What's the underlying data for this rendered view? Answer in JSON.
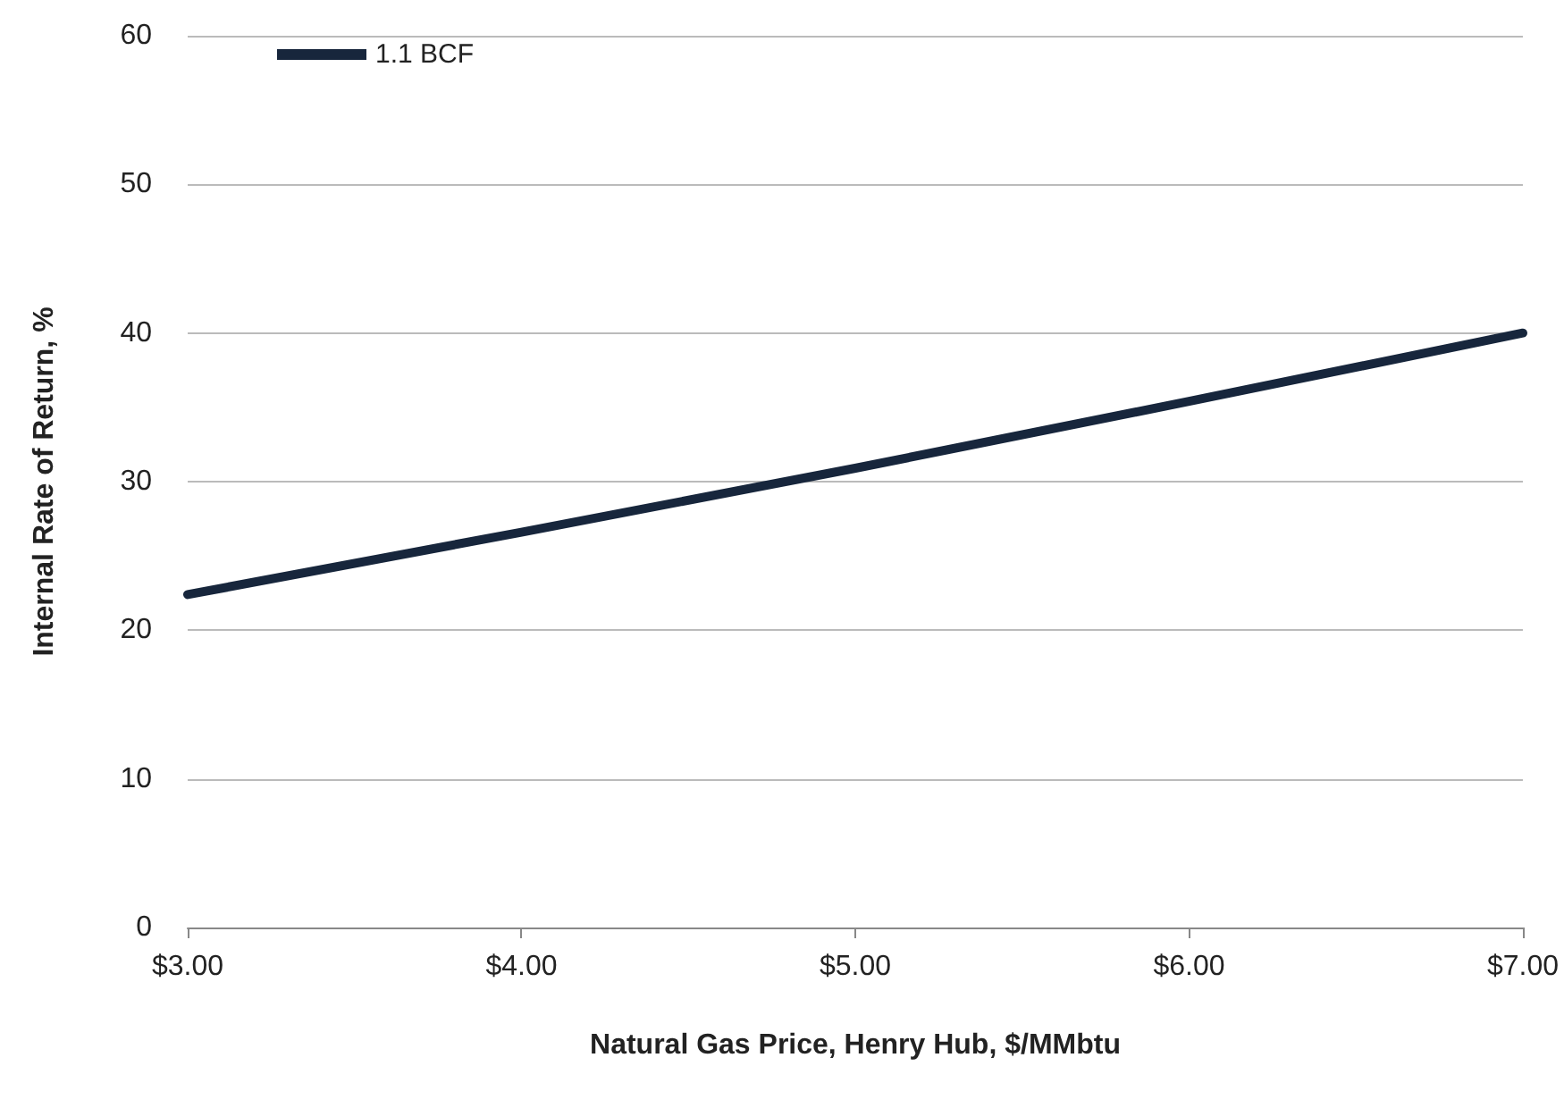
{
  "chart_data": {
    "type": "line",
    "xlabel": "Natural Gas Price, Henry Hub, $/MMbtu",
    "ylabel": "Internal Rate of Return, %",
    "x": [
      3,
      4,
      5,
      6,
      7
    ],
    "series": [
      {
        "name": "1.1 BCF",
        "color": "#17263c",
        "values": [
          22.4,
          26.6,
          30.9,
          35.4,
          40
        ]
      }
    ],
    "xlim": [
      3,
      7
    ],
    "xticks": [
      {
        "value": 3,
        "label": "$3.00"
      },
      {
        "value": 4,
        "label": "$4.00"
      },
      {
        "value": 5,
        "label": "$5.00"
      },
      {
        "value": 6,
        "label": "$6.00"
      },
      {
        "value": 7,
        "label": "$7.00"
      }
    ],
    "ylim": [
      0,
      60
    ],
    "yticks": [
      0,
      10,
      20,
      30,
      40,
      50,
      60
    ],
    "grid": "y",
    "legend": "top left",
    "marker": "none",
    "line_style": "solid"
  }
}
